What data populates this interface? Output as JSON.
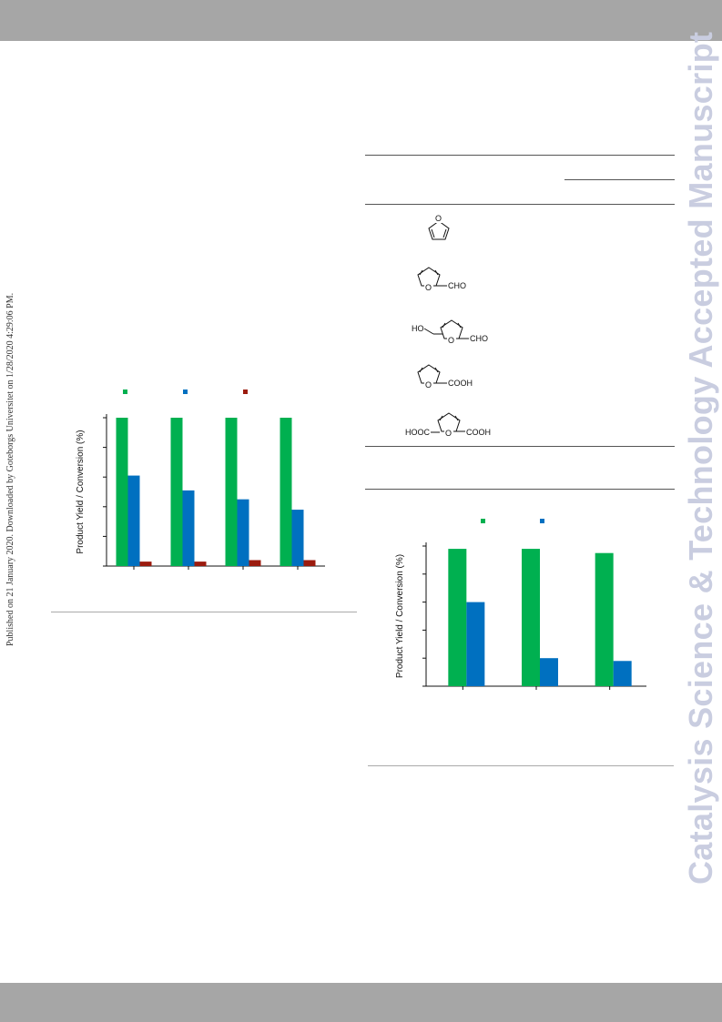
{
  "header_band": "",
  "watermark": "Catalysis Science & Technology Accepted Manuscript",
  "published_note": "Published on 21 January 2020. Downloaded by Goteborgs Universitet on 1/28/2020 4:29:06 PM.",
  "molecules": [
    {
      "name": "furan",
      "labels": [
        "O"
      ]
    },
    {
      "name": "furfural",
      "labels": [
        "O",
        "CHO"
      ]
    },
    {
      "name": "hmf",
      "labels": [
        "HO",
        "O",
        "CHO"
      ]
    },
    {
      "name": "furoic-acid",
      "labels": [
        "O",
        "COOH"
      ]
    },
    {
      "name": "fdca",
      "labels": [
        "HOOC",
        "O",
        "COOH"
      ]
    }
  ],
  "chart_data": [
    {
      "type": "bar",
      "ylabel": "Product Yield / Conversion (%)",
      "categories": [
        "",
        "",
        "",
        ""
      ],
      "ylim": [
        0,
        100
      ],
      "legend_colors": [
        "#00b050",
        "#0070c0",
        "#9b1b0e"
      ],
      "series": [
        {
          "color": "#00b050",
          "values": [
            100,
            100,
            100,
            100
          ]
        },
        {
          "color": "#0070c0",
          "values": [
            61,
            51,
            45,
            38
          ]
        },
        {
          "color": "#9b1b0e",
          "values": [
            3,
            3,
            4,
            4
          ]
        }
      ]
    },
    {
      "type": "bar",
      "ylabel": "Product Yield / Conversion (%)",
      "categories": [
        "",
        "",
        ""
      ],
      "ylim": [
        0,
        100
      ],
      "legend_colors": [
        "#00b050",
        "#0070c0"
      ],
      "series": [
        {
          "color": "#00b050",
          "values": [
            98,
            98,
            95
          ]
        },
        {
          "color": "#0070c0",
          "values": [
            60,
            20,
            18
          ]
        }
      ]
    }
  ]
}
